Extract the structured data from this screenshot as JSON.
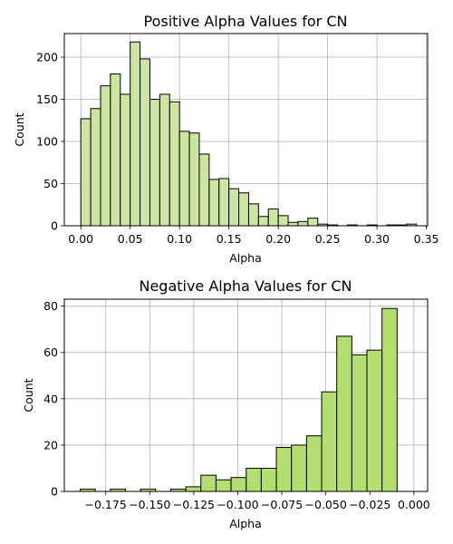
{
  "chart_data": [
    {
      "type": "bar",
      "title": "Positive Alpha Values for CN",
      "xlabel": "Alpha",
      "ylabel": "Count",
      "xlim": [
        -0.0167,
        0.3513
      ],
      "ylim": [
        0,
        228
      ],
      "grid": true,
      "bar_color": "#cde5a2",
      "edge_color": "#000000",
      "x_ticks": [
        0.0,
        0.05,
        0.1,
        0.15,
        0.2,
        0.25,
        0.3,
        0.35
      ],
      "x_tick_labels": [
        "0.00",
        "0.05",
        "0.10",
        "0.15",
        "0.20",
        "0.25",
        "0.30",
        "0.35"
      ],
      "y_ticks": [
        0,
        50,
        100,
        150,
        200
      ],
      "y_tick_labels": [
        "0",
        "50",
        "100",
        "150",
        "200"
      ],
      "bin_start": 0.0,
      "bin_width": 0.01,
      "values": [
        127,
        139,
        166,
        180,
        156,
        218,
        198,
        150,
        156,
        147,
        112,
        110,
        85,
        55,
        56,
        44,
        39,
        26,
        11,
        20,
        12,
        4,
        5,
        9,
        2,
        1,
        0,
        1,
        0,
        1,
        0,
        1,
        1,
        2
      ]
    },
    {
      "type": "bar",
      "title": "Negative Alpha Values for CN",
      "xlabel": "Alpha",
      "ylabel": "Count",
      "xlim": [
        -0.1985,
        0.0078
      ],
      "ylim": [
        0,
        83
      ],
      "grid": true,
      "bar_color": "#b5de70",
      "edge_color": "#000000",
      "x_ticks": [
        -0.175,
        -0.15,
        -0.125,
        -0.1,
        -0.075,
        -0.05,
        -0.025,
        0.0
      ],
      "x_tick_labels": [
        "−0.175",
        "−0.150",
        "−0.125",
        "−0.100",
        "−0.075",
        "−0.050",
        "−0.025",
        "0.000"
      ],
      "y_ticks": [
        0,
        20,
        40,
        60,
        80
      ],
      "y_tick_labels": [
        "0",
        "20",
        "40",
        "60",
        "80"
      ],
      "bin_start": -0.1895,
      "bin_width": 0.00857,
      "values": [
        1,
        0,
        1,
        0,
        1,
        0,
        1,
        2,
        7,
        5,
        6,
        10,
        10,
        19,
        20,
        24,
        43,
        67,
        59,
        61,
        79
      ]
    }
  ]
}
